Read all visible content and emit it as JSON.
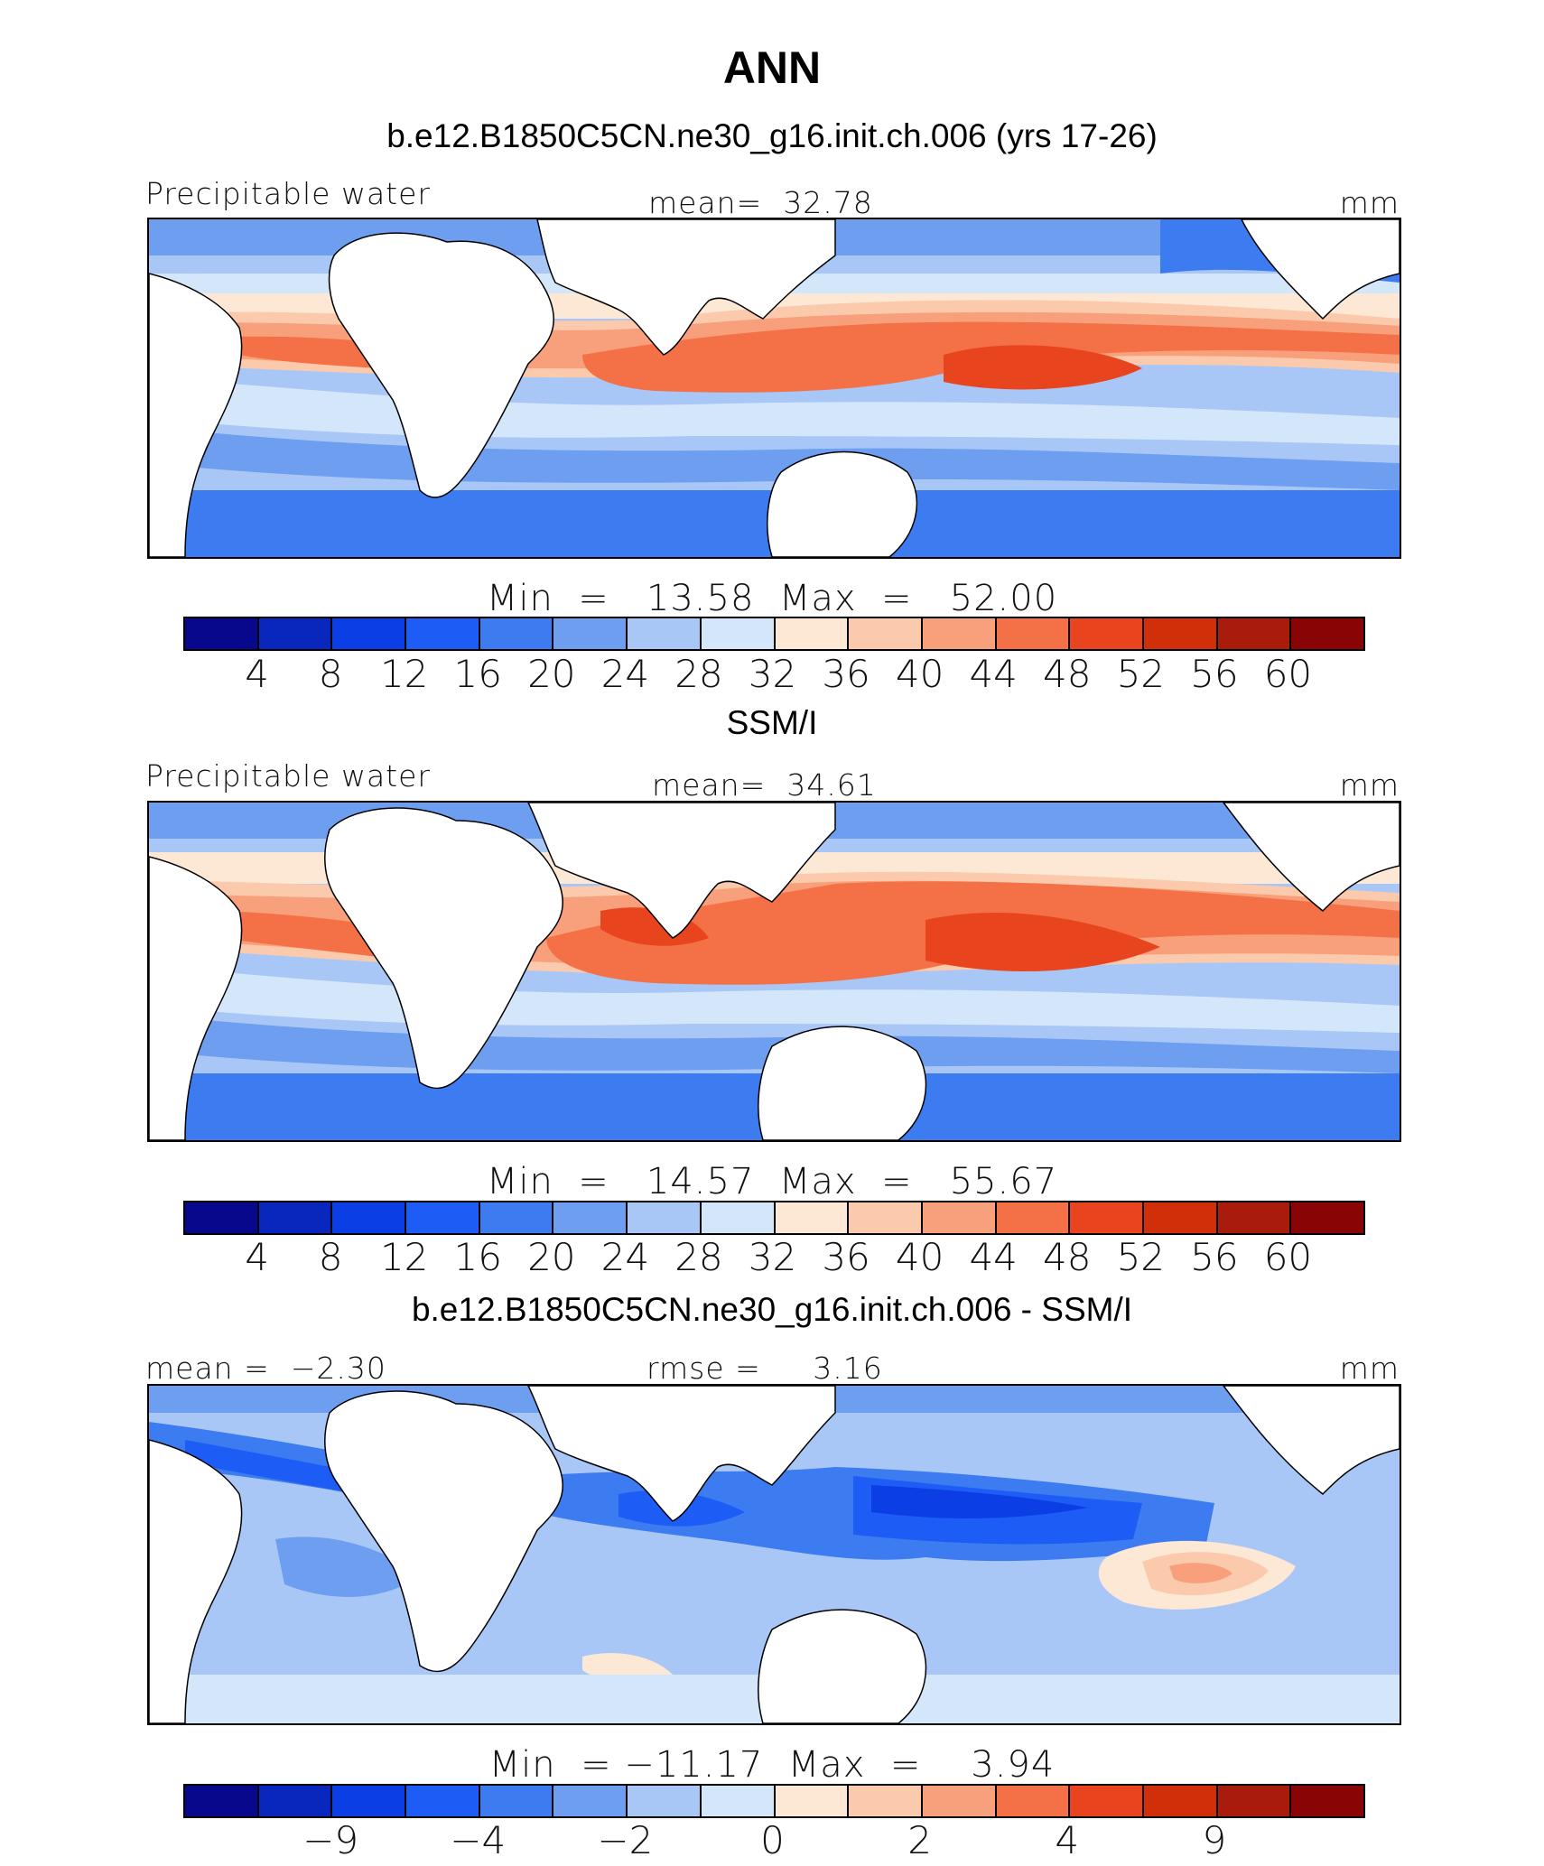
{
  "title": "ANN",
  "palette": [
    "#08088c",
    "#0a27bd",
    "#0c3ee5",
    "#1e5df5",
    "#3d7cf0",
    "#6e9ef0",
    "#a9c7f6",
    "#d4e6fa",
    "#fde8d6",
    "#fbc9ac",
    "#f89f7b",
    "#f47148",
    "#e8451f",
    "#d02f0a",
    "#a91c0b",
    "#890505"
  ],
  "panels": [
    {
      "heading": "b.e12.B1850C5CN.ne30_g16.init.ch.006 (yrs 17-26)",
      "left_label": "Precipitable water",
      "center_label": "mean=  32.78",
      "units": "mm",
      "minmax": "Min  =   13.58  Max  =   52.00",
      "colorbar_ticks": [
        "4",
        "8",
        "12",
        "16",
        "20",
        "24",
        "28",
        "32",
        "36",
        "40",
        "44",
        "48",
        "52",
        "56",
        "60"
      ]
    },
    {
      "heading": "SSM/I",
      "left_label": "Precipitable water",
      "center_label": "mean=  34.61",
      "units": "mm",
      "minmax": "Min  =   14.57  Max  =   55.67",
      "colorbar_ticks": [
        "4",
        "8",
        "12",
        "16",
        "20",
        "24",
        "28",
        "32",
        "36",
        "40",
        "44",
        "48",
        "52",
        "56",
        "60"
      ]
    },
    {
      "heading": "b.e12.B1850C5CN.ne30_g16.init.ch.006 - SSM/I",
      "left_label": "mean =  −2.30",
      "center_label": "rmse =     3.16",
      "units": "mm",
      "minmax": "Min  = −11.17  Max  =    3.94",
      "colorbar_ticks": [
        "−9",
        "−4",
        "−2",
        "0",
        "2",
        "4",
        "9"
      ]
    }
  ]
}
